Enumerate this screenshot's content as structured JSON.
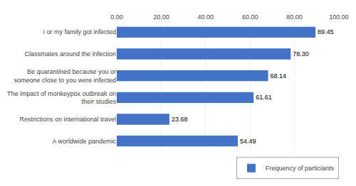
{
  "chart_data": {
    "type": "bar",
    "orientation": "horizontal",
    "categories": [
      "I or my family got infected",
      "Classmates around the infection",
      "Be quarantined because you or\nsomeone close to you were infected",
      "The impact of monkeypox outbreak on\ntheir studies",
      "Restrictions on international travel",
      "A worldwide pandemic"
    ],
    "series": [
      {
        "name": "Frequency of particiants",
        "color": "#4472C4",
        "values": [
          89.45,
          78.3,
          68.14,
          61.61,
          23.68,
          54.49
        ],
        "value_labels": [
          "89.45",
          "78.30",
          "68.14",
          "61.61",
          "23.68",
          "54.49"
        ]
      }
    ],
    "xlim": [
      0,
      100
    ],
    "xticks": [
      {
        "value": 0,
        "label": "0.00"
      },
      {
        "value": 20,
        "label": "20.00"
      },
      {
        "value": 40,
        "label": "40.00"
      },
      {
        "value": 60,
        "label": "60.00"
      },
      {
        "value": 80,
        "label": "80.00"
      },
      {
        "value": 100,
        "label": "100.00"
      }
    ],
    "grid": true,
    "legend": "lower right",
    "data_labels": true
  }
}
